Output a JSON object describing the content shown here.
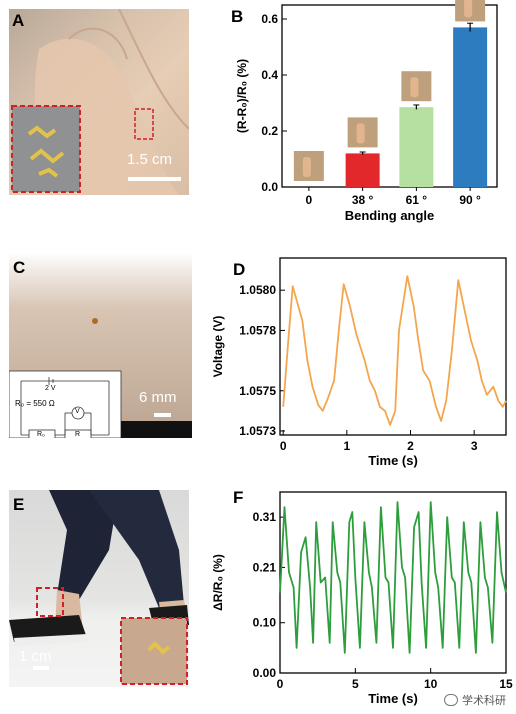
{
  "panels": {
    "a": {
      "letter": "A",
      "scale": "1.5 cm"
    },
    "b": {
      "letter": "B"
    },
    "c": {
      "letter": "C",
      "scale": "6 mm",
      "circuit_voltage": "2 V",
      "circuit_r0": "R₀ = 550 Ω",
      "circuit_box_r0": "R₀",
      "circuit_box_r": "R",
      "circuit_meter": "V"
    },
    "d": {
      "letter": "D"
    },
    "e": {
      "letter": "E",
      "scale": "1 cm"
    },
    "f": {
      "letter": "F"
    }
  },
  "watermark": "学术科研",
  "colors": {
    "orange": "#f4a64e",
    "green": "#2e9e3c",
    "bar_red": "#e2282a",
    "bar_lightgreen": "#b5e0a1",
    "bar_blue": "#2e7cc0"
  },
  "chart_data": [
    {
      "id": "b",
      "type": "bar",
      "categories": [
        "0",
        "38 °",
        "61 °",
        "90 °"
      ],
      "values": [
        0.0,
        0.12,
        0.285,
        0.57
      ],
      "errors": [
        0,
        0.005,
        0.008,
        0.015
      ],
      "bar_colors": [
        "#ffffff",
        "#e2282a",
        "#b5e0a1",
        "#2e7cc0"
      ],
      "xlabel": "Bending angle",
      "ylabel": "(R-R₀)/R₀ (%)",
      "ylim": [
        0,
        0.65
      ],
      "yticks": [
        "0.0",
        "0.2",
        "0.4",
        "0.6"
      ]
    },
    {
      "id": "d",
      "type": "line",
      "xlabel": "Time (s)",
      "ylabel": "Voltage (V)",
      "xlim": [
        -0.05,
        3.5
      ],
      "ylim": [
        1.05728,
        1.05816
      ],
      "xticks": [
        "0",
        "1",
        "2",
        "3"
      ],
      "yticks": [
        "1.0573",
        "1.0575",
        "1.0578",
        "1.0580"
      ],
      "x": [
        0,
        0.08,
        0.15,
        0.3,
        0.38,
        0.46,
        0.55,
        0.62,
        0.7,
        0.8,
        0.88,
        0.95,
        1.05,
        1.15,
        1.28,
        1.36,
        1.44,
        1.52,
        1.6,
        1.68,
        1.76,
        1.82,
        1.95,
        2.05,
        2.12,
        2.2,
        2.3,
        2.4,
        2.48,
        2.56,
        2.65,
        2.75,
        2.85,
        2.95,
        3.05,
        3.12,
        3.2,
        3.3,
        3.38,
        3.45,
        3.5
      ],
      "values": [
        1.05742,
        1.05775,
        1.05802,
        1.05785,
        1.05765,
        1.05752,
        1.05743,
        1.0574,
        1.05746,
        1.05755,
        1.05782,
        1.05803,
        1.05792,
        1.05778,
        1.05765,
        1.05755,
        1.0575,
        1.05742,
        1.0574,
        1.05733,
        1.0574,
        1.0578,
        1.05807,
        1.05792,
        1.05776,
        1.0576,
        1.05755,
        1.05742,
        1.05735,
        1.05745,
        1.0577,
        1.05805,
        1.0579,
        1.05775,
        1.05765,
        1.05755,
        1.05748,
        1.05752,
        1.05745,
        1.05742,
        1.05745
      ]
    },
    {
      "id": "f",
      "type": "line",
      "xlabel": "Time (s)",
      "ylabel": "ΔR/R₀ (%)",
      "xlim": [
        0,
        15
      ],
      "ylim": [
        0,
        0.36
      ],
      "xticks": [
        "0",
        "5",
        "10",
        "15"
      ],
      "yticks": [
        "0.00",
        "0.10",
        "0.21",
        "0.31"
      ],
      "x": [
        0,
        0.3,
        0.6,
        0.9,
        1.1,
        1.4,
        1.7,
        2.0,
        2.2,
        2.4,
        2.7,
        3.0,
        3.3,
        3.5,
        3.8,
        4.0,
        4.3,
        4.6,
        4.8,
        5.0,
        5.3,
        5.6,
        5.9,
        6.1,
        6.4,
        6.7,
        7.0,
        7.2,
        7.5,
        7.8,
        8.1,
        8.3,
        8.6,
        8.9,
        9.2,
        9.4,
        9.7,
        10.0,
        10.3,
        10.5,
        10.8,
        11.1,
        11.4,
        11.6,
        11.9,
        12.2,
        12.5,
        12.7,
        13.0,
        13.3,
        13.6,
        13.8,
        14.1,
        14.4,
        14.7,
        15.0
      ],
      "values": [
        0.16,
        0.33,
        0.2,
        0.17,
        0.05,
        0.24,
        0.27,
        0.17,
        0.06,
        0.3,
        0.18,
        0.19,
        0.06,
        0.3,
        0.2,
        0.18,
        0.04,
        0.3,
        0.32,
        0.19,
        0.05,
        0.3,
        0.2,
        0.17,
        0.06,
        0.33,
        0.19,
        0.18,
        0.05,
        0.34,
        0.21,
        0.19,
        0.04,
        0.29,
        0.32,
        0.18,
        0.05,
        0.34,
        0.2,
        0.17,
        0.05,
        0.31,
        0.19,
        0.18,
        0.05,
        0.3,
        0.2,
        0.18,
        0.04,
        0.3,
        0.19,
        0.17,
        0.06,
        0.32,
        0.2,
        0.16
      ]
    }
  ]
}
